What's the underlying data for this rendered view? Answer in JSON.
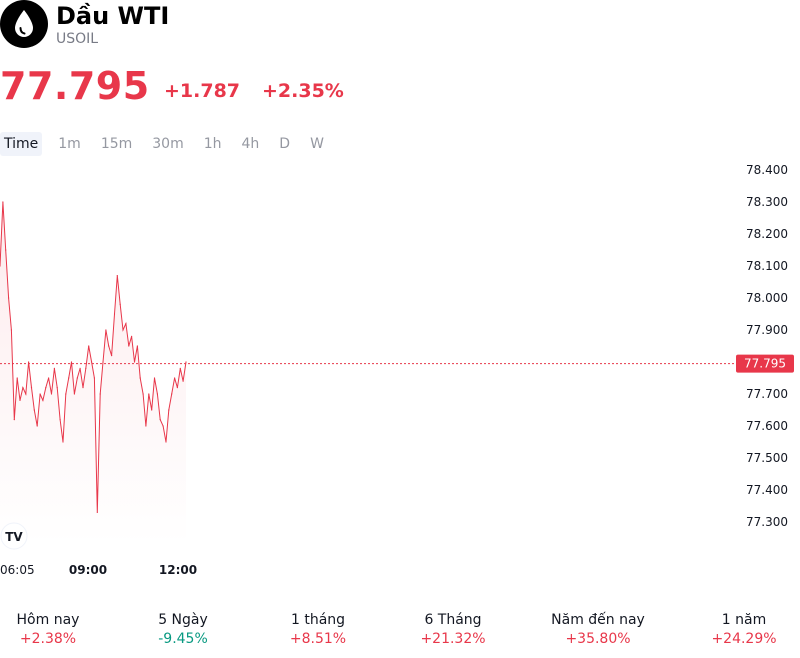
{
  "header": {
    "title": "Dầu WTI",
    "ticker": "USOIL"
  },
  "quote": {
    "price": "77.795",
    "change": "+1.787",
    "change_percent": "+2.35%",
    "color_up": "#e8374a"
  },
  "intervals": [
    {
      "label": "Time",
      "active": true
    },
    {
      "label": "1m"
    },
    {
      "label": "15m"
    },
    {
      "label": "30m"
    },
    {
      "label": "1h"
    },
    {
      "label": "4h"
    },
    {
      "label": "D"
    },
    {
      "label": "W"
    }
  ],
  "chart_data": {
    "type": "line",
    "ylim": [
      77.25,
      78.45
    ],
    "y_ticks": [
      "78.400",
      "78.300",
      "78.200",
      "78.100",
      "78.000",
      "77.900",
      "77.800",
      "77.700",
      "77.600",
      "77.500",
      "77.400",
      "77.300"
    ],
    "x_tick_labels": [
      "06:05",
      "09:00",
      "12:00"
    ],
    "current_value": 77.795,
    "current_label": "77.795",
    "line_color": "#e8374a",
    "series": [
      {
        "values": [
          78.1,
          78.3,
          78.15,
          78.0,
          77.9,
          77.62,
          77.75,
          77.68,
          77.72,
          77.7,
          77.8,
          77.72,
          77.65,
          77.6,
          77.7,
          77.68,
          77.72,
          77.75,
          77.7,
          77.78,
          77.72,
          77.62,
          77.55,
          77.7,
          77.75,
          77.8,
          77.7,
          77.75,
          77.78,
          77.72,
          77.78,
          77.85,
          77.8,
          77.75,
          77.33,
          77.7,
          77.8,
          77.9,
          77.85,
          77.82,
          77.95,
          78.07,
          77.98,
          77.9,
          77.92,
          77.85,
          77.88,
          77.8,
          77.85,
          77.75,
          77.7,
          77.6,
          77.7,
          77.65,
          77.75,
          77.7,
          77.62,
          77.6,
          77.55,
          77.65,
          77.7,
          77.75,
          77.72,
          77.78,
          77.74,
          77.8
        ]
      }
    ]
  },
  "periods": [
    {
      "label": "Hôm nay",
      "value": "+2.38%",
      "trend": "up"
    },
    {
      "label": "5 Ngày",
      "value": "-9.45%",
      "trend": "down"
    },
    {
      "label": "1 tháng",
      "value": "+8.51%",
      "trend": "up"
    },
    {
      "label": "6 Tháng",
      "value": "+21.32%",
      "trend": "up"
    },
    {
      "label": "Năm đến nay",
      "value": "+35.80%",
      "trend": "up"
    },
    {
      "label": "1 năm",
      "value": "+24.29%",
      "trend": "up"
    }
  ],
  "colors": {
    "up": "#e8374a",
    "down": "#089981"
  }
}
